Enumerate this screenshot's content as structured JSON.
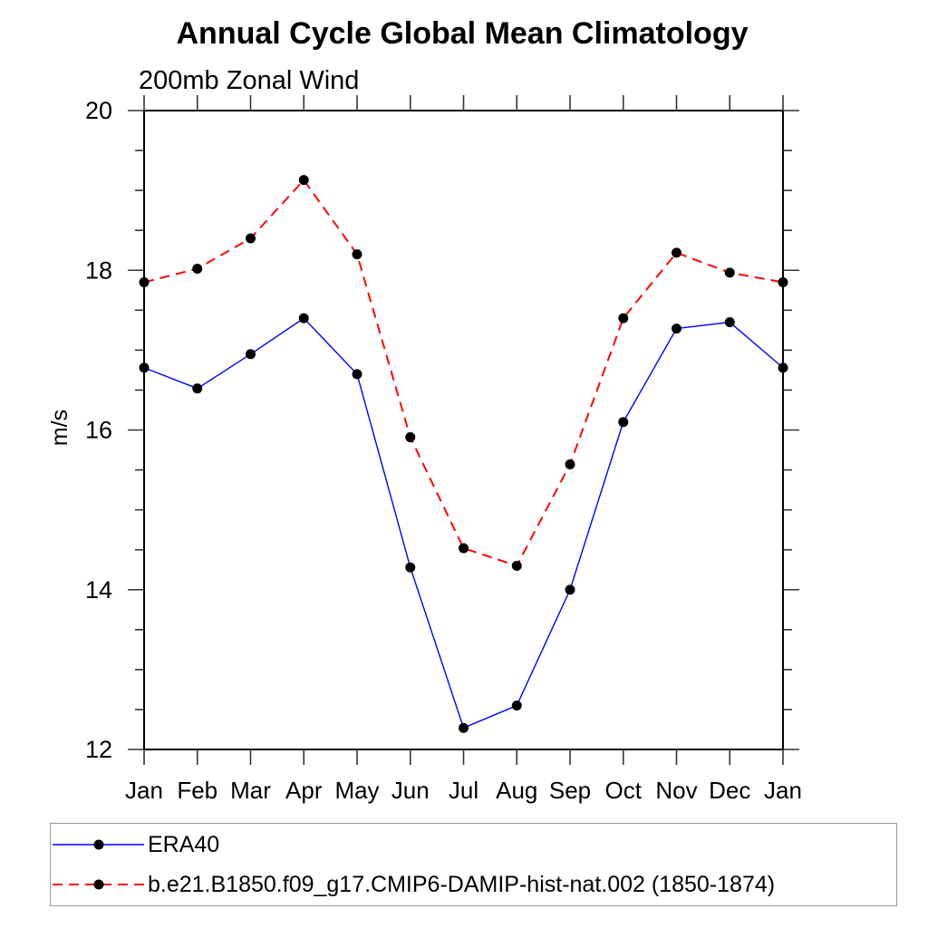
{
  "chart_data": {
    "type": "line",
    "title": "Annual Cycle Global Mean Climatology",
    "subtitle": "200mb Zonal Wind",
    "ylabel": "m/s",
    "xlabel": "",
    "categories": [
      "Jan",
      "Feb",
      "Mar",
      "Apr",
      "May",
      "Jun",
      "Jul",
      "Aug",
      "Sep",
      "Oct",
      "Nov",
      "Dec",
      "Jan"
    ],
    "ylim": [
      12,
      20
    ],
    "yticks_major": [
      12,
      14,
      16,
      18,
      20
    ],
    "ytick_minor_step": 0.5,
    "grid": false,
    "legend_position": "bottom-box",
    "frame_color": "#000000",
    "tick_color": "#333333",
    "marker_color": "#000000",
    "series": [
      {
        "name": "ERA40",
        "color": "#0000ff",
        "line_style": "solid",
        "line_width": 1.4,
        "marker": "circle",
        "values": [
          16.78,
          16.52,
          16.95,
          17.4,
          16.7,
          14.28,
          12.27,
          12.55,
          14.0,
          16.1,
          17.27,
          17.35,
          16.78
        ]
      },
      {
        "name": "b.e21.B1850.f09_g17.CMIP6-DAMIP-hist-nat.002 (1850-1874)",
        "color": "#ff0000",
        "line_style": "dashed",
        "line_width": 2,
        "marker": "circle",
        "values": [
          17.85,
          18.02,
          18.4,
          19.13,
          18.2,
          15.91,
          14.52,
          14.3,
          15.57,
          17.4,
          18.22,
          17.97,
          17.85
        ]
      }
    ]
  }
}
